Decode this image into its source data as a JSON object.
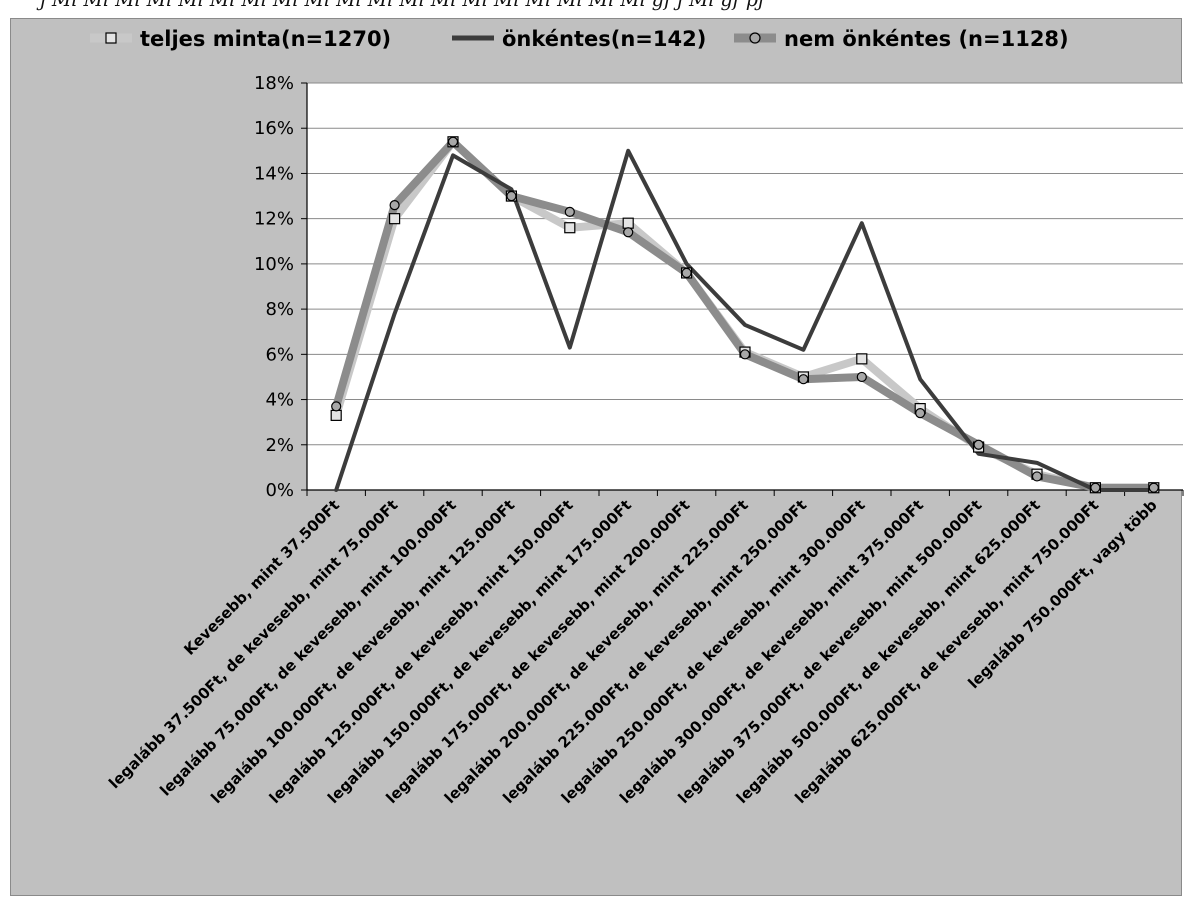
{
  "top_strip": {
    "text": "j Ml Ml Ml Ml Ml Ml Ml Ml Ml Ml Ml Ml Ml Ml Ml Ml Ml Ml Ml gf j Ml gf pj"
  },
  "colors": {
    "background": "#c0c0c0",
    "plot_area": "#ffffff",
    "gridline": "#8a8a8a",
    "series_total": "#c8c8c8",
    "series_volunteer": "#3c3c3c",
    "series_nonvolunteer": "#8c8c8c"
  },
  "chart_data": {
    "type": "line",
    "title": "",
    "xlabel": "",
    "ylabel": "",
    "ylim": [
      0,
      18
    ],
    "y_ticks": [
      "0%",
      "2%",
      "4%",
      "6%",
      "8%",
      "10%",
      "12%",
      "14%",
      "16%",
      "18%"
    ],
    "grid": "horizontal",
    "legend_position": "top",
    "categories": [
      "Kevesebb, mint 37.500Ft",
      "legalább 37.500Ft, de kevesebb, mint 75.000Ft",
      "legalább 75.000Ft, de kevesebb, mint 100.000Ft",
      "legalább 100.000Ft, de kevesebb, mint 125.000Ft",
      "legalább 125.000Ft, de kevesebb, mint 150.000Ft",
      "legalább 150.000Ft, de kevesebb, mint 175.000Ft",
      "legalább 175.000Ft, de kevesebb, mint 200.000Ft",
      "legalább 200.000Ft, de kevesebb, mint 225.000Ft",
      "legalább 225.000Ft, de kevesebb, mint 250.000Ft",
      "legalább 250.000Ft, de kevesebb, mint 300.000Ft",
      "legalább 300.000Ft, de kevesebb, mint 375.000Ft",
      "legalább 375.000Ft, de kevesebb, mint 500.000Ft",
      "legalább 500.000Ft, de kevesebb, mint 625.000Ft",
      "legalább 625.000Ft, de kevesebb, mint 750.000Ft",
      "legalább 750.000Ft, vagy több"
    ],
    "series": [
      {
        "name": "teljes minta(n=1270)",
        "marker": "square",
        "color": "#c8c8c8",
        "values": [
          3.3,
          12.0,
          15.4,
          13.0,
          11.6,
          11.8,
          9.6,
          6.1,
          5.0,
          5.8,
          3.6,
          1.9,
          0.7,
          0.1,
          0.1
        ]
      },
      {
        "name": "önkéntes(n=142)",
        "marker": "none",
        "color": "#3c3c3c",
        "values": [
          0.0,
          7.8,
          14.8,
          13.3,
          6.3,
          15.0,
          10.0,
          7.3,
          6.2,
          11.8,
          4.9,
          1.6,
          1.2,
          0.0,
          0.0
        ]
      },
      {
        "name": "nem önkéntes (n=1128)",
        "marker": "circle",
        "color": "#8c8c8c",
        "values": [
          3.7,
          12.6,
          15.4,
          13.0,
          12.3,
          11.4,
          9.6,
          6.0,
          4.9,
          5.0,
          3.4,
          2.0,
          0.6,
          0.1,
          0.1
        ]
      }
    ]
  }
}
